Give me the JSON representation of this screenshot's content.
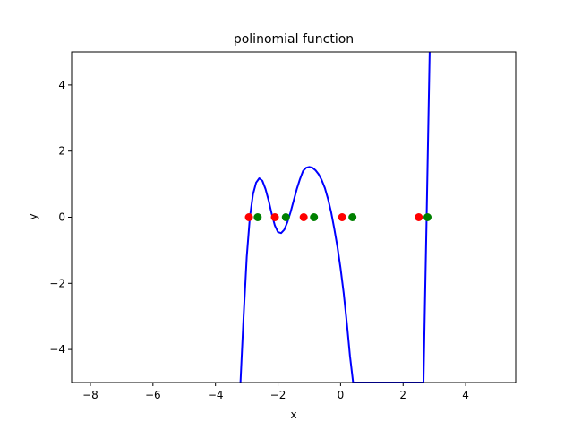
{
  "chart_data": {
    "type": "line",
    "title": "polinomial function",
    "xlabel": "x",
    "ylabel": "y",
    "xlim": [
      -8.6,
      5.6
    ],
    "ylim": [
      -5,
      5
    ],
    "xticks": [
      -8,
      -6,
      -4,
      -2,
      0,
      2,
      4
    ],
    "xtick_labels": [
      "−8",
      "−6",
      "−4",
      "−2",
      "0",
      "2",
      "4"
    ],
    "yticks": [
      -4,
      -2,
      0,
      2,
      4
    ],
    "ytick_labels": [
      "−4",
      "−2",
      "0",
      "2",
      "4"
    ],
    "grid": false,
    "legend": "none",
    "series": [
      {
        "kind": "line",
        "color": "#0000ff",
        "x": [
          -3.2,
          -3.1,
          -3.0,
          -2.9,
          -2.8,
          -2.7,
          -2.6,
          -2.5,
          -2.4,
          -2.3,
          -2.2,
          -2.1,
          -2.0,
          -1.9,
          -1.8,
          -1.7,
          -1.6,
          -1.5,
          -1.4,
          -1.3,
          -1.2,
          -1.1,
          -1.0,
          -0.9,
          -0.8,
          -0.7,
          -0.6,
          -0.5,
          -0.4,
          -0.3,
          -0.2,
          -0.1,
          0.0,
          0.1,
          0.2,
          0.3,
          0.4,
          0.5,
          0.6,
          0.7,
          0.8,
          0.85,
          2.65,
          2.7,
          2.75,
          2.8,
          2.85
        ],
        "y": [
          -5.0,
          -3.0,
          -1.2,
          0.0,
          0.7,
          1.05,
          1.18,
          1.1,
          0.85,
          0.5,
          0.1,
          -0.25,
          -0.45,
          -0.48,
          -0.38,
          -0.15,
          0.15,
          0.5,
          0.85,
          1.15,
          1.4,
          1.5,
          1.52,
          1.5,
          1.42,
          1.3,
          1.12,
          0.88,
          0.55,
          0.15,
          -0.35,
          -0.9,
          -1.55,
          -2.3,
          -3.2,
          -4.2,
          -5.0,
          -5.0,
          -5.0,
          -5.0,
          -5.0,
          -5.0,
          -5.0,
          -2.5,
          0.0,
          2.5,
          5.0
        ]
      },
      {
        "kind": "scatter",
        "color": "#ff0000",
        "x": [
          -2.93,
          -2.1,
          -1.18,
          0.05,
          2.5
        ],
        "y": [
          0,
          0,
          0,
          0,
          0
        ]
      },
      {
        "kind": "scatter",
        "color": "#008000",
        "x": [
          -2.65,
          -1.75,
          -0.85,
          0.38,
          2.78
        ],
        "y": [
          0,
          0,
          0,
          0,
          0
        ]
      }
    ]
  }
}
